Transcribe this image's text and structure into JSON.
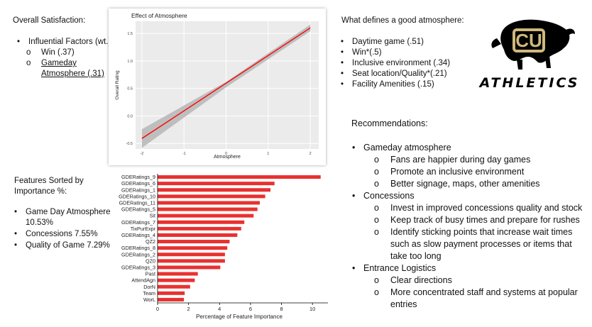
{
  "overall": {
    "title": "Overall Satisfaction:",
    "factors_label": "Influential Factors (wt.)",
    "factors": [
      {
        "label": "Win (.37)",
        "underline": false
      },
      {
        "label": "Gameday Atmosphere (.31)",
        "underline": true
      }
    ]
  },
  "features": {
    "title": "Features Sorted by Importance %:",
    "items": [
      "Game Day Atmosphere 10.53%",
      "Concessions 7.55%",
      "Quality of Game 7.29%"
    ]
  },
  "atmosphere": {
    "title": "What defines a good atmosphere:",
    "items": [
      "Daytime game (.51)",
      "Win*(.5)",
      "Inclusive environment (.34)",
      "Seat location/Quality*(.21)",
      "Facility Amenities (.15)"
    ]
  },
  "logo": {
    "text": "ATHLETICS",
    "monogram": "CU",
    "gold": "#CFB87C",
    "black": "#000000"
  },
  "recommendations": {
    "title": "Recommendations:",
    "groups": [
      {
        "label": "Gameday atmosphere",
        "items": [
          "Fans are happier during day games",
          "Promote an inclusive environment",
          "Better signage, maps, other amenities"
        ]
      },
      {
        "label": "Concessions",
        "items": [
          "Invest in improved concessions quality and stock",
          "Keep track of busy times and prepare for rushes",
          "Identify sticking points that increase wait times such as slow payment processes or items that take too long"
        ]
      },
      {
        "label": "Entrance Logistics",
        "items": [
          "Clear directions",
          "More concentrated staff and systems at popular entries"
        ]
      }
    ]
  },
  "chart_data": [
    {
      "type": "line",
      "title": "Effect of Atmosphere",
      "xlabel": "Atmosphere",
      "ylabel": "Overall Rating",
      "xlim": [
        -2.15,
        2.2
      ],
      "ylim": [
        -0.6,
        1.72
      ],
      "xticks": [
        -2,
        -1,
        0,
        1,
        2
      ],
      "xtick_labels": [
        "-2",
        "-1",
        "0",
        "1",
        "2"
      ],
      "yticks": [
        -0.5,
        0.0,
        0.5,
        1.0,
        1.5
      ],
      "ytick_labels": [
        "-0.5",
        "0.0",
        "0.5",
        "1.0",
        "1.5"
      ],
      "grid": true,
      "line": {
        "x": [
          -2,
          2
        ],
        "y": [
          -0.41,
          1.6
        ]
      },
      "band": {
        "x": [
          -2,
          0,
          2
        ],
        "lower": [
          -0.58,
          0.52,
          1.54
        ],
        "upper": [
          -0.24,
          0.62,
          1.66
        ]
      },
      "line_color": "#FF0000",
      "band_color": "#BEBEBE",
      "panel_color": "#EBEBEB"
    },
    {
      "type": "bar",
      "orientation": "horizontal",
      "xlabel": "Percentage of Feature Importance",
      "xlim": [
        0,
        11
      ],
      "xticks": [
        0,
        2,
        4,
        6,
        8,
        10
      ],
      "xtick_labels": [
        "0",
        "2",
        "4",
        "6",
        "8",
        "10"
      ],
      "categories": [
        "GDERatings_9",
        "GDERatings_6",
        "GDERatings_1",
        "GDERatings_10",
        "GDERatings_11",
        "GDERatings_5",
        "Sit",
        "GDERatings_7",
        "TixPurExpr",
        "GDERatings_4",
        "QZ2",
        "GDERatings_8",
        "GDERatings_2",
        "QZ0",
        "GDERatings_3",
        "Past",
        "AttendAgn",
        "DorN",
        "Team",
        "WorL"
      ],
      "values": [
        10.53,
        7.55,
        7.29,
        6.95,
        6.6,
        6.45,
        6.2,
        5.6,
        5.4,
        5.15,
        4.65,
        4.5,
        4.35,
        4.35,
        4.05,
        2.6,
        2.4,
        2.1,
        1.75,
        1.7
      ],
      "bar_color": "#E8312F"
    }
  ]
}
